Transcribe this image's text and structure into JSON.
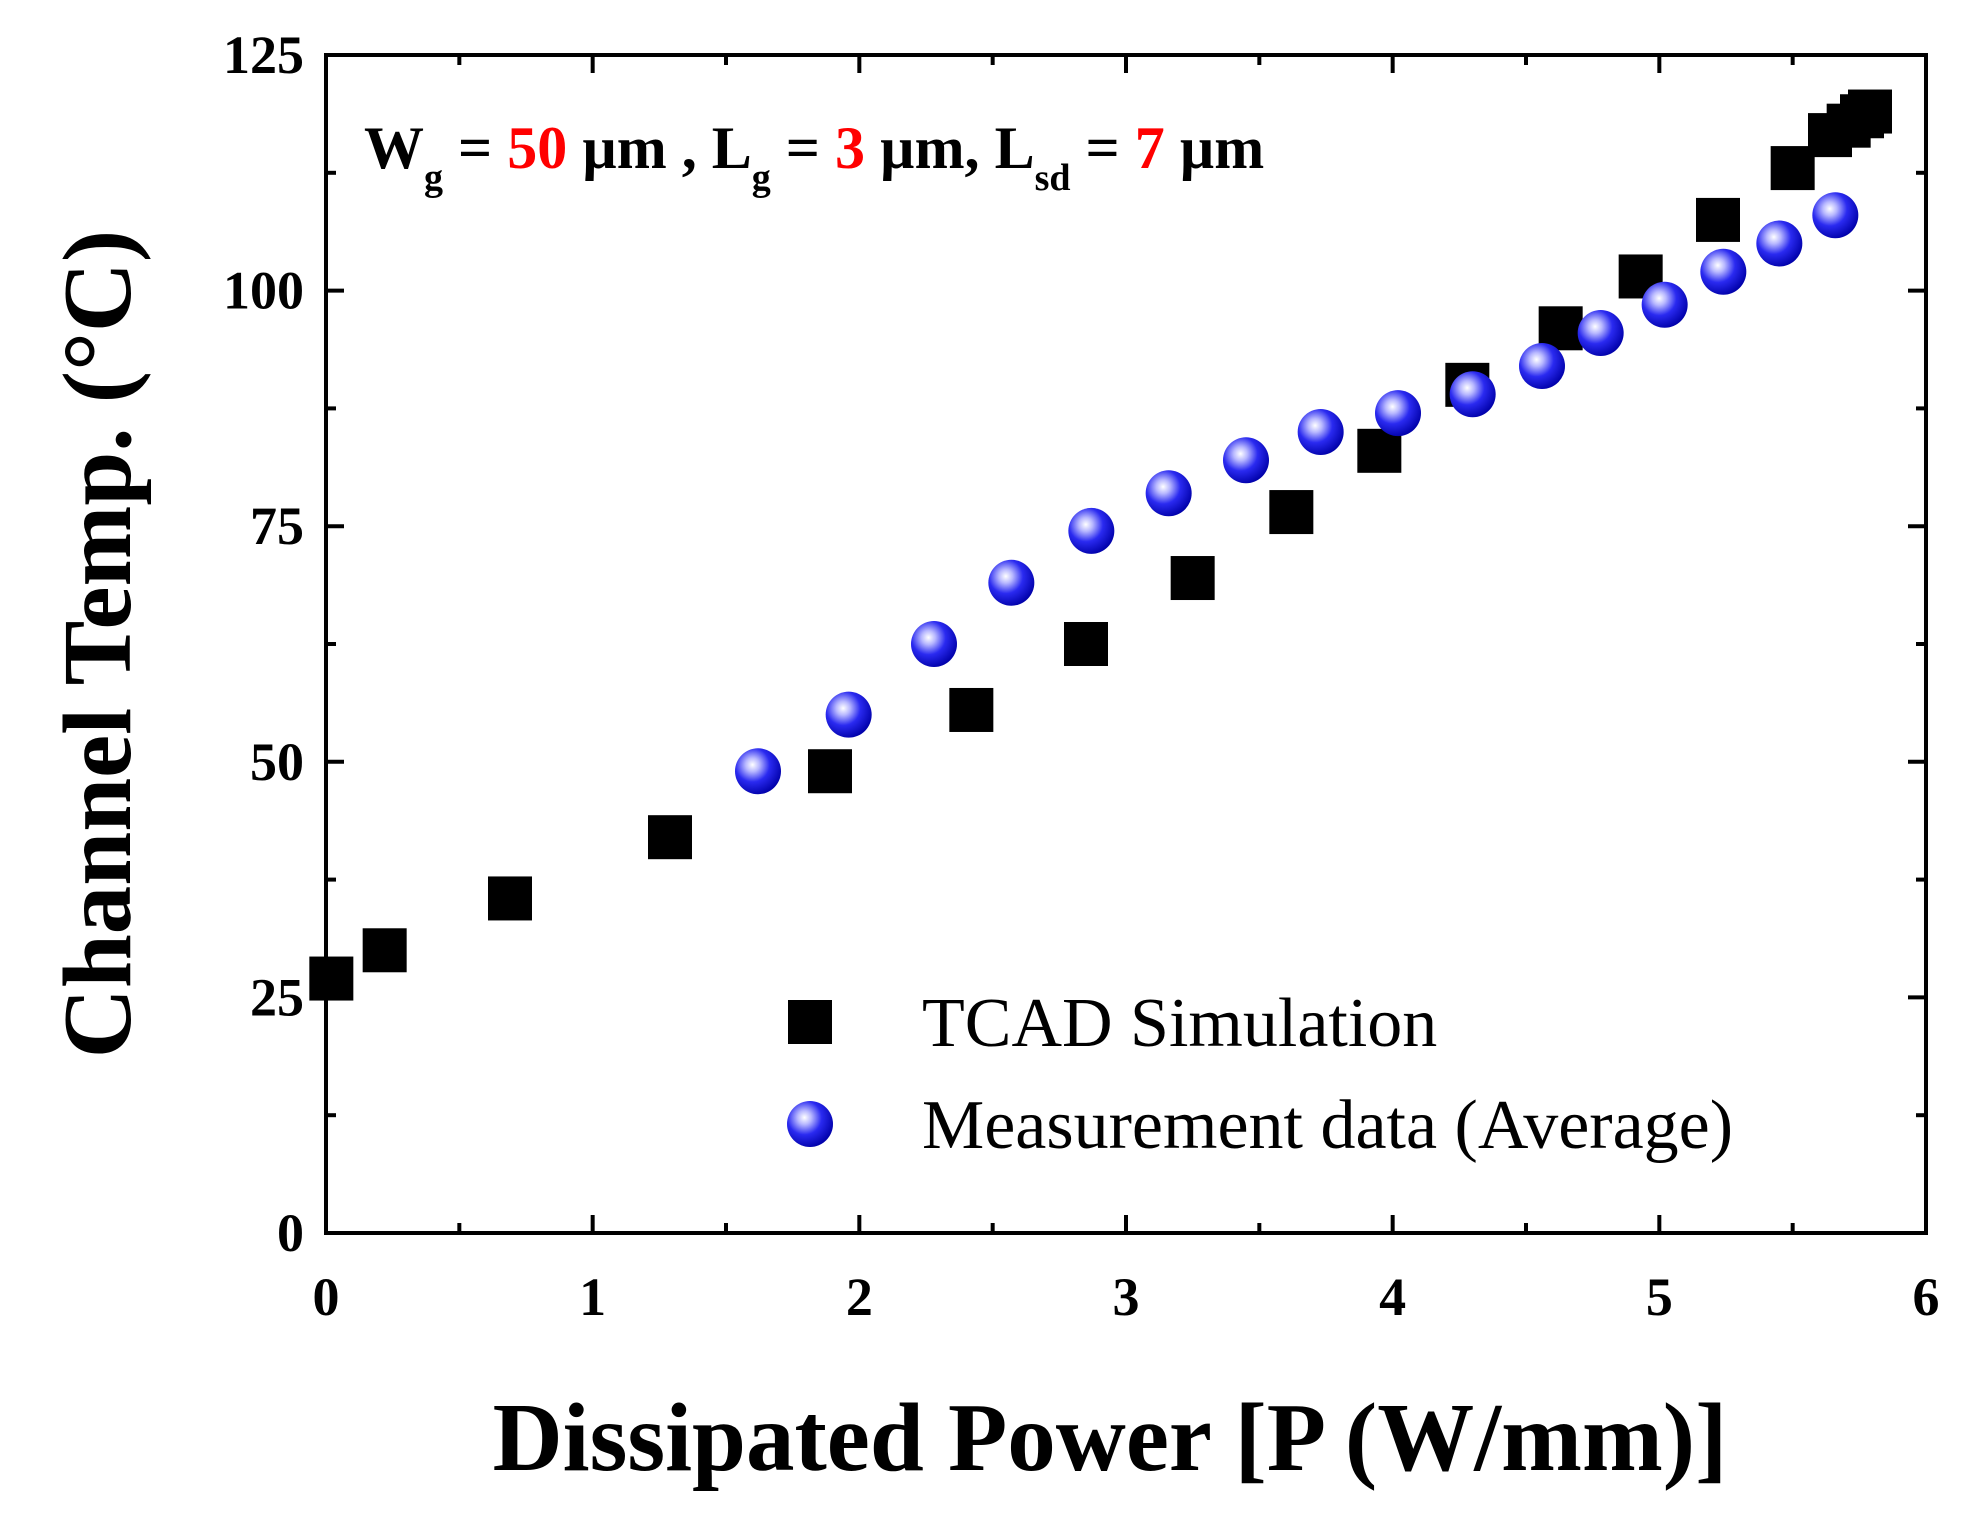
{
  "chart_data": {
    "type": "scatter",
    "title": "",
    "xlabel": "Dissipated Power [P (W/mm)]",
    "ylabel": "Channel Temp. (°C)",
    "xlim": [
      0,
      6
    ],
    "ylim": [
      0,
      125
    ],
    "x_ticks": [
      "0",
      "1",
      "2",
      "3",
      "4",
      "5",
      "6"
    ],
    "y_ticks": [
      "0",
      "25",
      "50",
      "75",
      "100",
      "125"
    ],
    "grid": false,
    "annotation": {
      "w_label": "W",
      "w_sub": "g",
      "w_eq": " = ",
      "w_value": "50",
      "w_unit": " µm , ",
      "lg_label": "L",
      "lg_sub": "g",
      "lg_eq": " = ",
      "lg_value": "3",
      "lg_unit": " µm, ",
      "lsd_label": "L",
      "lsd_sub": "sd",
      "lsd_eq": " = ",
      "lsd_value": "7",
      "lsd_unit": " µm"
    },
    "legend_position": "bottom-right",
    "series": [
      {
        "name": "TCAD Simulation",
        "marker": "square",
        "color": "#000000",
        "x": [
          0.02,
          0.22,
          0.69,
          1.29,
          1.89,
          2.42,
          2.85,
          3.25,
          3.62,
          3.95,
          4.28,
          4.63,
          4.93,
          5.22,
          5.5,
          5.64,
          5.71,
          5.76,
          5.79
        ],
        "y": [
          27.0,
          30.0,
          35.5,
          42.0,
          49.0,
          55.5,
          62.5,
          69.5,
          76.5,
          83.0,
          90.0,
          96.0,
          101.5,
          107.5,
          113.0,
          116.5,
          117.5,
          118.5,
          119.0
        ]
      },
      {
        "name": "Measurement data (Average)",
        "marker": "sphere",
        "color": "#1010e8",
        "x": [
          1.62,
          1.96,
          2.28,
          2.57,
          2.87,
          3.16,
          3.45,
          3.73,
          4.02,
          4.3,
          4.56,
          4.78,
          5.02,
          5.24,
          5.45,
          5.66
        ],
        "y": [
          49.0,
          55.0,
          62.5,
          69.0,
          74.5,
          78.5,
          82.0,
          85.0,
          87.0,
          89.0,
          92.0,
          95.5,
          98.5,
          102.0,
          105.0,
          108.0
        ]
      }
    ]
  }
}
